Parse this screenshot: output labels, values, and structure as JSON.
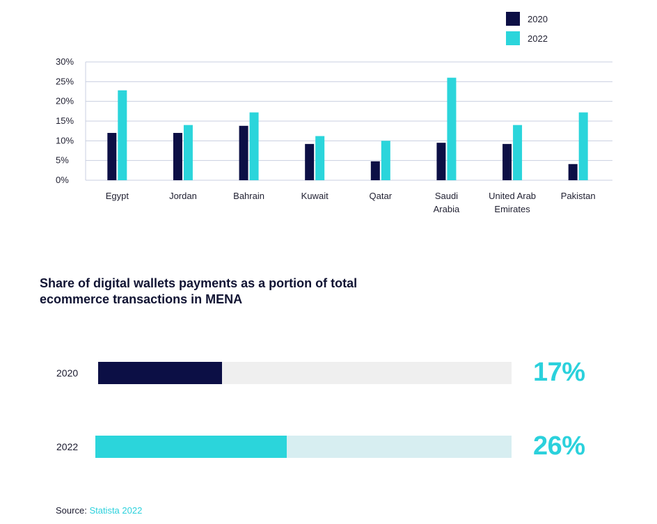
{
  "chart_data": [
    {
      "type": "bar",
      "categories": [
        "Egypt",
        "Jordan",
        "Bahrain",
        "Kuwait",
        "Qatar",
        "Saudi Arabia",
        "United Arab Emirates",
        "Pakistan"
      ],
      "category_lines": [
        [
          "Egypt"
        ],
        [
          "Jordan"
        ],
        [
          "Bahrain"
        ],
        [
          "Kuwait"
        ],
        [
          "Qatar"
        ],
        [
          "Saudi",
          "Arabia"
        ],
        [
          "United Arab",
          "Emirates"
        ],
        [
          "Pakistan"
        ]
      ],
      "series": [
        {
          "name": "2020",
          "color": "#0c0f45",
          "values": [
            12,
            12,
            13.8,
            9.2,
            4.8,
            9.5,
            9.2,
            4.1
          ]
        },
        {
          "name": "2022",
          "color": "#2bd5db",
          "values": [
            22.8,
            14,
            17.2,
            11.2,
            10,
            26,
            14,
            17.2
          ]
        }
      ],
      "ylim": [
        0,
        30
      ],
      "yticks": [
        0,
        5,
        10,
        15,
        20,
        25,
        30
      ],
      "ytick_format": "percent",
      "grid": true,
      "legend_position": "top-right",
      "title": "",
      "xlabel": "",
      "ylabel": ""
    },
    {
      "type": "bar",
      "orientation": "horizontal",
      "title": "Share of digital wallets payments as a portion of total ecommerce transactions in MENA",
      "categories": [
        "2020",
        "2022"
      ],
      "values": [
        17,
        26
      ],
      "value_labels": [
        "17%",
        "26%"
      ],
      "fill_colors": [
        "#0c0f45",
        "#2bd5db"
      ],
      "track_colors": [
        "#efefef",
        "#d7eef1"
      ],
      "value_label_color": "#2bd1dc"
    }
  ],
  "title_lines": [
    "Share of digital wallets payments as a portion of total",
    "ecommerce transactions in MENA"
  ],
  "source": {
    "label": "Source:",
    "name": "Statista 2022"
  }
}
